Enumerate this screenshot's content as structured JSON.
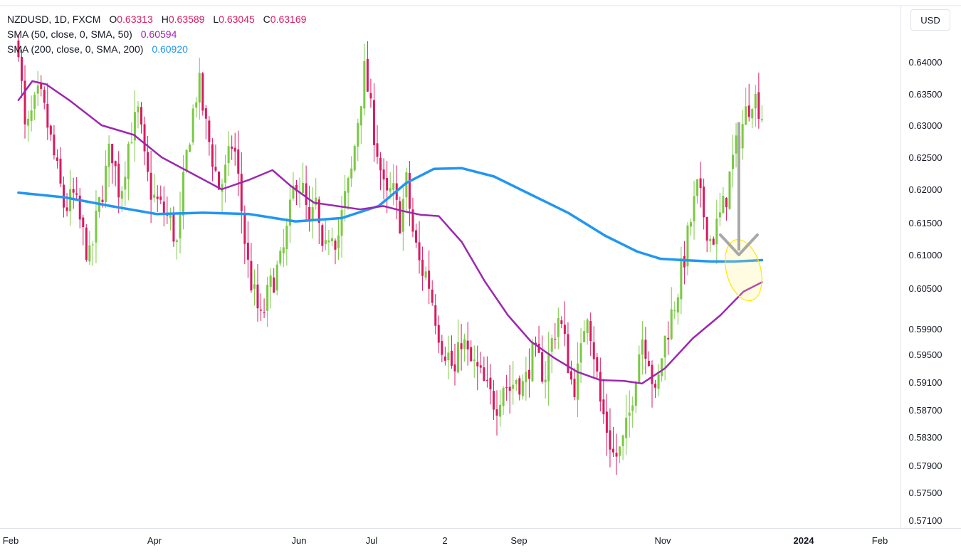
{
  "symbol_line": {
    "symbol": "NZDUSD, 1D, FXCM",
    "open_label": "O",
    "open": "0.63313",
    "high_label": "H",
    "high": "0.63589",
    "low_label": "L",
    "low": "0.63045",
    "close_label": "C",
    "close": "0.63169"
  },
  "indicators": [
    {
      "label": "SMA (50, close, 0, SMA, 50)",
      "value": "0.60594",
      "color": "#9c27b0"
    },
    {
      "label": "SMA (200, close, 0, SMA, 200)",
      "value": "0.60920",
      "color": "#2196f3"
    }
  ],
  "currency_button": "USD",
  "colors": {
    "up": "#7ac943",
    "down": "#d81b60",
    "sma50": "#9c27b0",
    "sma200": "#2196f3",
    "arrow": "#a8a8a8",
    "highlight": "#ffe600",
    "axis_text": "#131722",
    "ohlc_value": "#d81b60"
  },
  "chart_data": {
    "type": "candlestick",
    "x_axis": {
      "ticks": [
        "Feb",
        "Apr",
        "Jun",
        "Jul",
        "2",
        "Sep",
        "Nov",
        "2024",
        "Feb"
      ],
      "range": [
        "2023-01-31",
        "2024-02-25"
      ]
    },
    "y_axis": {
      "ticks": [
        "0.64000",
        "0.63500",
        "0.63000",
        "0.62500",
        "0.62000",
        "0.61500",
        "0.61000",
        "0.60500",
        "0.59900",
        "0.59500",
        "0.59100",
        "0.58700",
        "0.58300",
        "0.57900",
        "0.57500",
        "0.57100"
      ],
      "ylim": [
        0.5695,
        0.6455
      ]
    },
    "price_path": [
      [
        0,
        0.643
      ],
      [
        3,
        0.628
      ],
      [
        6,
        0.632
      ],
      [
        9,
        0.635
      ],
      [
        12,
        0.631
      ],
      [
        16,
        0.624
      ],
      [
        20,
        0.617
      ],
      [
        24,
        0.619
      ],
      [
        28,
        0.613
      ],
      [
        31,
        0.609
      ],
      [
        34,
        0.616
      ],
      [
        37,
        0.621
      ],
      [
        40,
        0.627
      ],
      [
        44,
        0.619
      ],
      [
        48,
        0.628
      ],
      [
        52,
        0.632
      ],
      [
        55,
        0.623
      ],
      [
        58,
        0.619
      ],
      [
        62,
        0.617
      ],
      [
        66,
        0.615
      ],
      [
        69,
        0.611
      ],
      [
        72,
        0.623
      ],
      [
        75,
        0.631
      ],
      [
        78,
        0.637
      ],
      [
        81,
        0.63
      ],
      [
        84,
        0.625
      ],
      [
        87,
        0.62
      ],
      [
        90,
        0.623
      ],
      [
        93,
        0.628
      ],
      [
        96,
        0.619
      ],
      [
        99,
        0.609
      ],
      [
        102,
        0.604
      ],
      [
        105,
        0.6
      ],
      [
        108,
        0.604
      ],
      [
        111,
        0.607
      ],
      [
        114,
        0.609
      ],
      [
        117,
        0.615
      ],
      [
        120,
        0.622
      ],
      [
        123,
        0.62
      ],
      [
        126,
        0.614
      ],
      [
        129,
        0.618
      ],
      [
        132,
        0.608
      ],
      [
        135,
        0.615
      ],
      [
        138,
        0.612
      ],
      [
        141,
        0.618
      ],
      [
        144,
        0.622
      ],
      [
        147,
        0.631
      ],
      [
        150,
        0.639
      ],
      [
        153,
        0.631
      ],
      [
        156,
        0.625
      ],
      [
        159,
        0.618
      ],
      [
        162,
        0.62
      ],
      [
        165,
        0.615
      ],
      [
        168,
        0.621
      ],
      [
        171,
        0.613
      ],
      [
        174,
        0.608
      ],
      [
        177,
        0.607
      ],
      [
        180,
        0.602
      ],
      [
        183,
        0.597
      ],
      [
        186,
        0.595
      ],
      [
        189,
        0.592
      ],
      [
        192,
        0.598
      ],
      [
        195,
        0.594
      ],
      [
        198,
        0.593
      ],
      [
        201,
        0.591
      ],
      [
        204,
        0.589
      ],
      [
        207,
        0.588
      ],
      [
        210,
        0.591
      ],
      [
        213,
        0.59
      ],
      [
        216,
        0.592
      ],
      [
        219,
        0.59
      ],
      [
        222,
        0.595
      ],
      [
        225,
        0.594
      ],
      [
        228,
        0.592
      ],
      [
        231,
        0.597
      ],
      [
        234,
        0.601
      ],
      [
        237,
        0.596
      ],
      [
        240,
        0.59
      ],
      [
        243,
        0.593
      ],
      [
        246,
        0.603
      ],
      [
        249,
        0.596
      ],
      [
        252,
        0.588
      ],
      [
        255,
        0.584
      ],
      [
        258,
        0.58
      ],
      [
        261,
        0.581
      ],
      [
        264,
        0.585
      ],
      [
        267,
        0.592
      ],
      [
        270,
        0.598
      ],
      [
        273,
        0.595
      ],
      [
        276,
        0.588
      ],
      [
        279,
        0.596
      ],
      [
        282,
        0.6
      ],
      [
        285,
        0.604
      ],
      [
        288,
        0.609
      ],
      [
        291,
        0.615
      ],
      [
        294,
        0.62
      ],
      [
        297,
        0.616
      ],
      [
        300,
        0.612
      ],
      [
        303,
        0.615
      ],
      [
        306,
        0.618
      ],
      [
        309,
        0.624
      ],
      [
        312,
        0.628
      ],
      [
        315,
        0.632
      ],
      [
        318,
        0.635
      ],
      [
        320,
        0.6337
      ],
      [
        322,
        0.6317
      ]
    ],
    "sma50": [
      [
        0,
        0.634
      ],
      [
        6,
        0.637
      ],
      [
        12,
        0.6365
      ],
      [
        22,
        0.634
      ],
      [
        36,
        0.63
      ],
      [
        50,
        0.6285
      ],
      [
        62,
        0.625
      ],
      [
        75,
        0.6225
      ],
      [
        88,
        0.62
      ],
      [
        100,
        0.6215
      ],
      [
        110,
        0.623
      ],
      [
        118,
        0.6205
      ],
      [
        128,
        0.618
      ],
      [
        138,
        0.6175
      ],
      [
        148,
        0.617
      ],
      [
        158,
        0.6175
      ],
      [
        166,
        0.6168
      ],
      [
        174,
        0.6162
      ],
      [
        182,
        0.616
      ],
      [
        192,
        0.612
      ],
      [
        202,
        0.606
      ],
      [
        212,
        0.601
      ],
      [
        222,
        0.597
      ],
      [
        232,
        0.5945
      ],
      [
        242,
        0.5925
      ],
      [
        252,
        0.5913
      ],
      [
        262,
        0.5912
      ],
      [
        270,
        0.5908
      ],
      [
        280,
        0.593
      ],
      [
        292,
        0.5975
      ],
      [
        304,
        0.601
      ],
      [
        314,
        0.6045
      ],
      [
        322,
        0.6059
      ]
    ],
    "sma200": [
      [
        0,
        0.6195
      ],
      [
        20,
        0.6188
      ],
      [
        40,
        0.6175
      ],
      [
        60,
        0.6163
      ],
      [
        80,
        0.6165
      ],
      [
        100,
        0.6163
      ],
      [
        120,
        0.6152
      ],
      [
        140,
        0.6157
      ],
      [
        156,
        0.6175
      ],
      [
        168,
        0.621
      ],
      [
        180,
        0.6232
      ],
      [
        192,
        0.6233
      ],
      [
        206,
        0.622
      ],
      [
        222,
        0.6192
      ],
      [
        238,
        0.6165
      ],
      [
        254,
        0.613
      ],
      [
        268,
        0.6105
      ],
      [
        278,
        0.6094
      ],
      [
        288,
        0.6092
      ],
      [
        300,
        0.609
      ],
      [
        310,
        0.609
      ],
      [
        316,
        0.6091
      ],
      [
        322,
        0.6092
      ]
    ],
    "annotations": [
      {
        "type": "arrow",
        "direction": "down",
        "from_day": 312,
        "from": 0.6305,
        "to": 0.61
      },
      {
        "type": "ellipse",
        "at_day": 314,
        "center": 0.6077
      }
    ]
  }
}
